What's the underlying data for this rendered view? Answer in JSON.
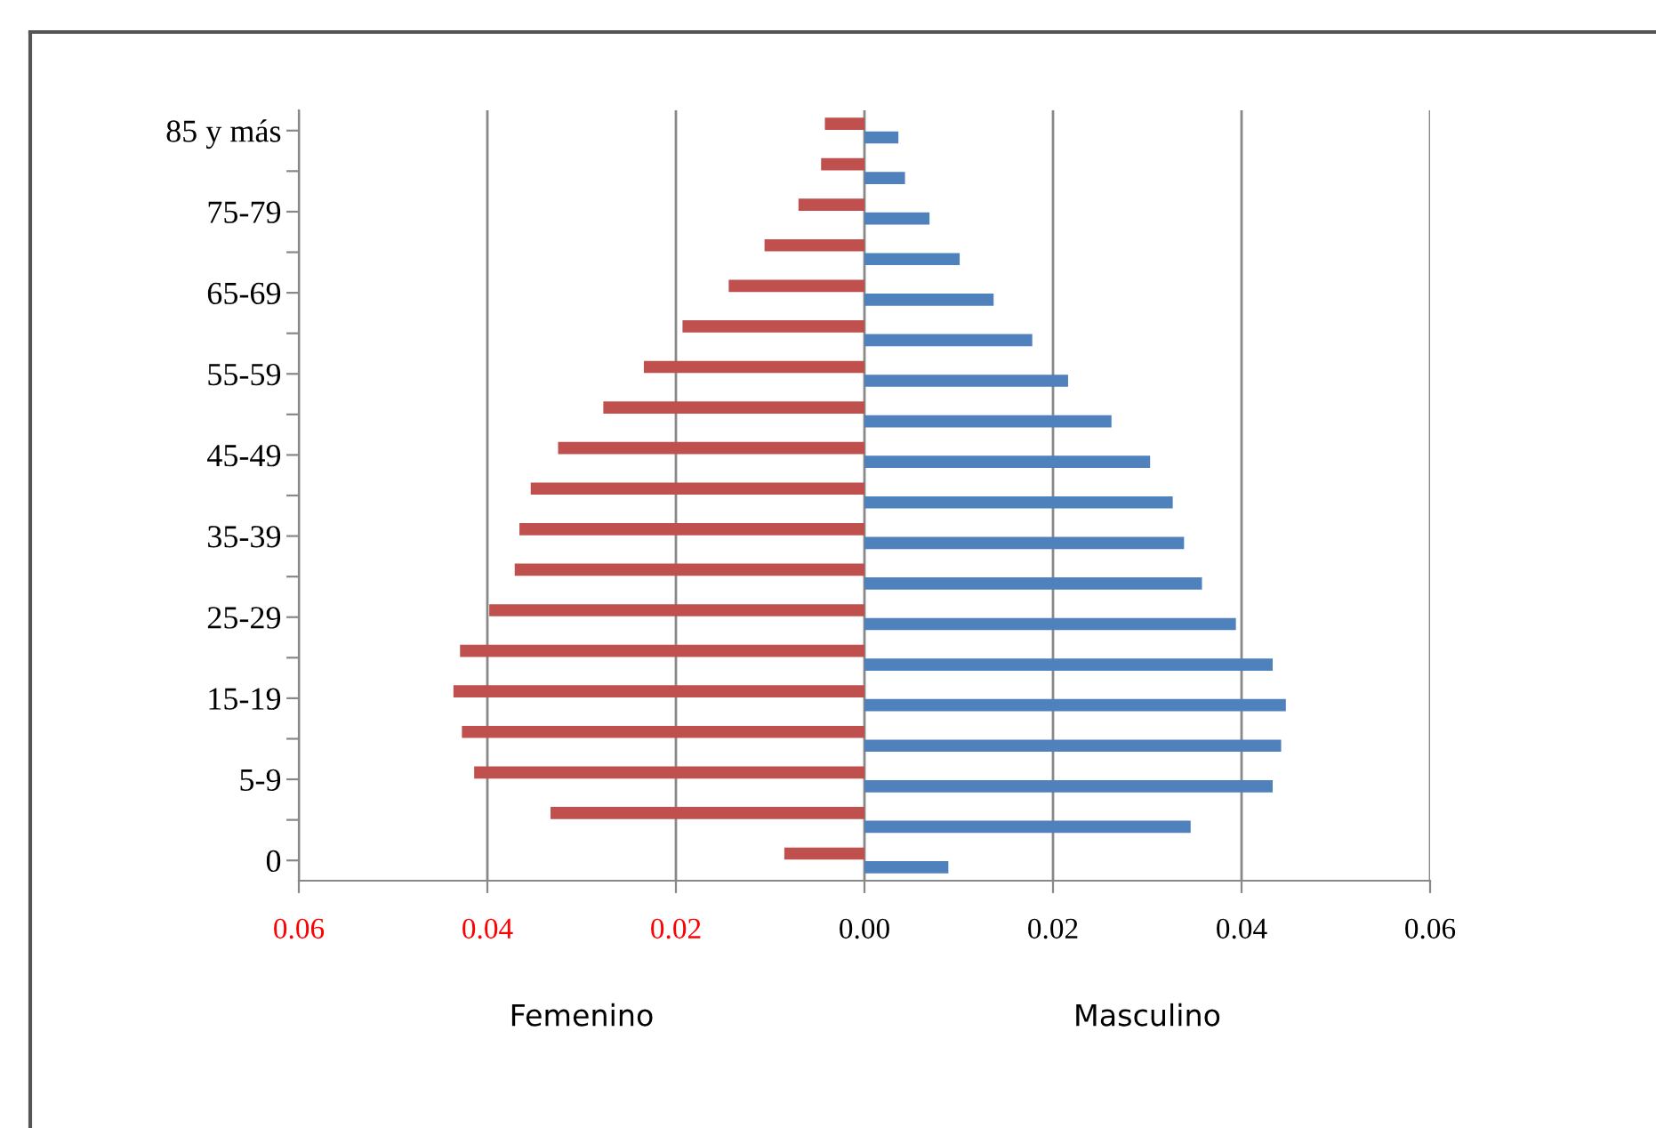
{
  "chart_data": {
    "type": "bar",
    "orientation": "horizontal",
    "categories": [
      "85 y más",
      null,
      "75-79",
      null,
      "65-69",
      null,
      "55-59",
      null,
      "45-49",
      null,
      "35-39",
      null,
      "25-29",
      null,
      "15-19",
      null,
      "5-9",
      null,
      "0"
    ],
    "series": [
      {
        "color": "#c0504d",
        "values": [
          -0.0042,
          -0.0046,
          -0.007,
          -0.0106,
          -0.0144,
          -0.0193,
          -0.0234,
          -0.0277,
          -0.0325,
          -0.0354,
          -0.0366,
          -0.0371,
          -0.0398,
          -0.0429,
          -0.0436,
          -0.0427,
          -0.0414,
          -0.0333,
          -0.0085
        ]
      },
      {
        "color": "#4f81bd",
        "values": [
          0.0036,
          0.0043,
          0.0069,
          0.0101,
          0.0137,
          0.0178,
          0.0216,
          0.0262,
          0.0303,
          0.0327,
          0.0339,
          0.0358,
          0.0394,
          0.0433,
          0.0447,
          0.0442,
          0.0433,
          0.0346,
          0.0089
        ]
      }
    ],
    "xlim": [
      -0.06,
      0.06
    ],
    "xticks": [
      {
        "value": -0.06,
        "label": "0.06"
      },
      {
        "value": -0.04,
        "label": "0.04"
      },
      {
        "value": -0.02,
        "label": "0.02"
      },
      {
        "value": 0,
        "label": "0.00"
      },
      0.02,
      0.04,
      0.06
    ],
    "annotations": [
      "Femenino",
      "Masculino"
    ],
    "grid": "x",
    "legend": false
  }
}
